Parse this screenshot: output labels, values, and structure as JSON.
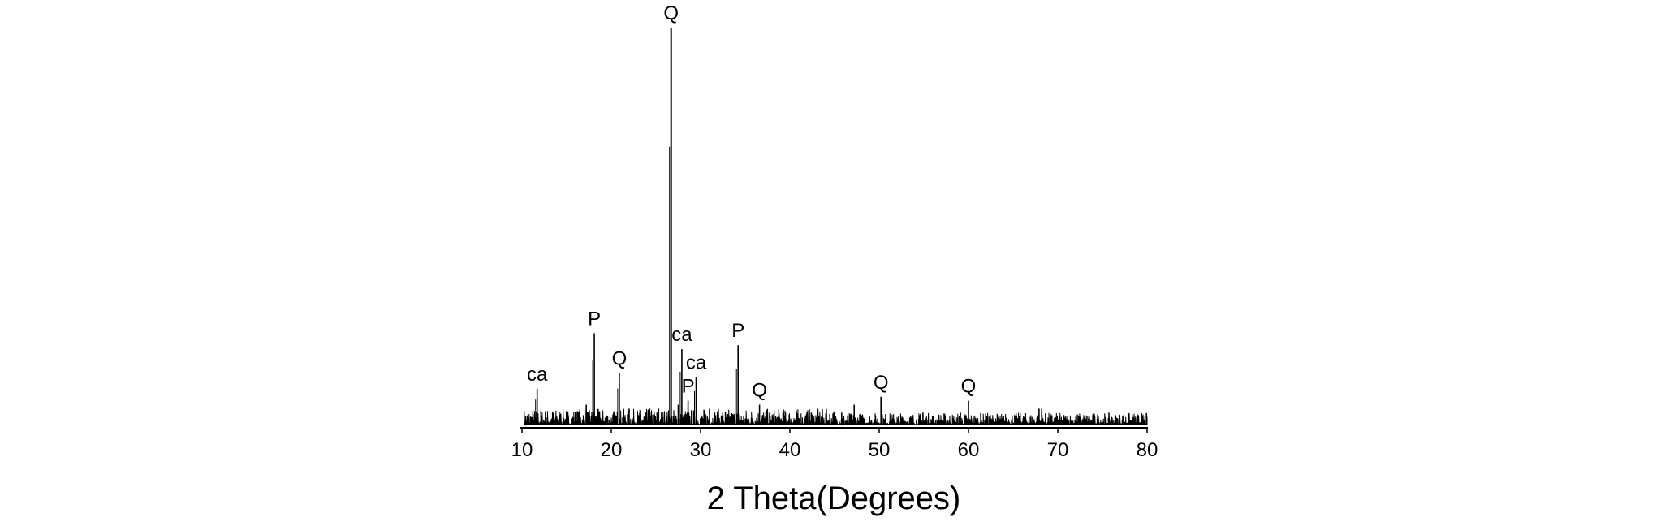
{
  "chart_data": {
    "type": "line",
    "title": "",
    "xlabel": "2 Theta(Degrees)",
    "ylabel": "",
    "xlim": [
      10,
      80
    ],
    "ylim": [
      0,
      100
    ],
    "xticks": [
      10,
      20,
      30,
      40,
      50,
      60,
      70,
      80
    ],
    "grid": false,
    "legend": "none",
    "line_color": "#000000",
    "noise_level": 4,
    "peaks": [
      {
        "x": 11.7,
        "y": 9,
        "label": "ca"
      },
      {
        "x": 18.1,
        "y": 23,
        "label": "P"
      },
      {
        "x": 20.9,
        "y": 13,
        "label": "Q"
      },
      {
        "x": 26.7,
        "y": 100,
        "label": "Q"
      },
      {
        "x": 27.9,
        "y": 19,
        "label": "ca"
      },
      {
        "x": 28.6,
        "y": 6,
        "label": "P"
      },
      {
        "x": 29.5,
        "y": 12,
        "label": "ca"
      },
      {
        "x": 34.2,
        "y": 20,
        "label": "P"
      },
      {
        "x": 36.6,
        "y": 5,
        "label": "Q"
      },
      {
        "x": 50.2,
        "y": 7,
        "label": "Q"
      },
      {
        "x": 60.0,
        "y": 6,
        "label": "Q"
      },
      {
        "x": 17.2,
        "y": 5,
        "label": ""
      },
      {
        "x": 22.0,
        "y": 4,
        "label": ""
      },
      {
        "x": 24.3,
        "y": 4,
        "label": ""
      },
      {
        "x": 25.3,
        "y": 4,
        "label": ""
      },
      {
        "x": 27.5,
        "y": 5,
        "label": ""
      },
      {
        "x": 31.0,
        "y": 4,
        "label": ""
      },
      {
        "x": 39.5,
        "y": 3,
        "label": ""
      },
      {
        "x": 42.4,
        "y": 3,
        "label": ""
      },
      {
        "x": 45.8,
        "y": 3,
        "label": ""
      },
      {
        "x": 47.2,
        "y": 5,
        "label": ""
      },
      {
        "x": 54.9,
        "y": 3,
        "label": ""
      },
      {
        "x": 59.1,
        "y": 3,
        "label": ""
      },
      {
        "x": 67.9,
        "y": 4,
        "label": ""
      },
      {
        "x": 68.2,
        "y": 4,
        "label": ""
      }
    ]
  }
}
